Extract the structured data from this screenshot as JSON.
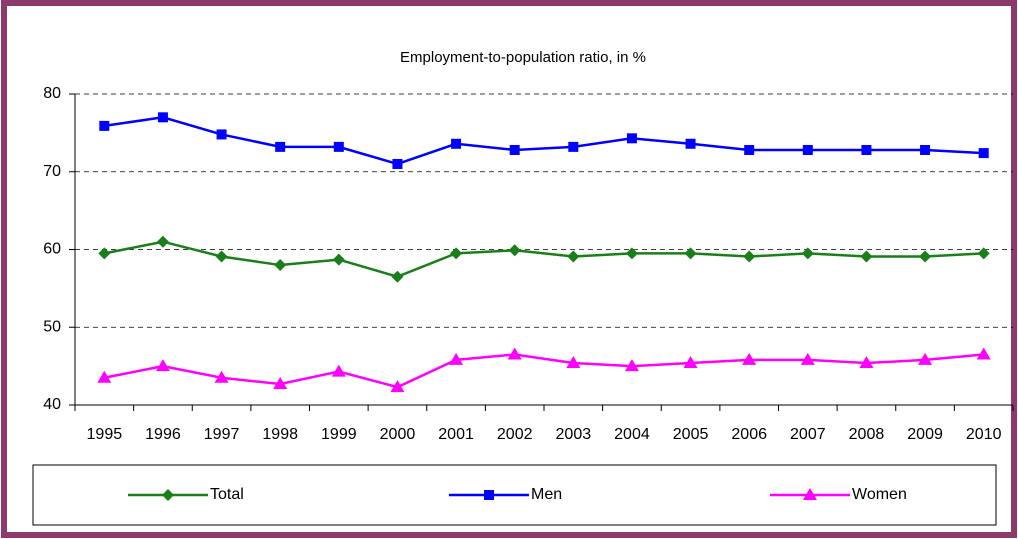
{
  "chart_data": {
    "type": "line",
    "title": "Employment-to-population ratio, in %",
    "categories": [
      "1995",
      "1996",
      "1997",
      "1998",
      "1999",
      "2000",
      "2001",
      "2002",
      "2003",
      "2004",
      "2005",
      "2006",
      "2007",
      "2008",
      "2009",
      "2010"
    ],
    "series": [
      {
        "name": "Total",
        "color": "#1a7f1a",
        "marker": "diamond",
        "values": [
          59.5,
          61.0,
          59.1,
          58.0,
          58.7,
          56.5,
          59.5,
          59.9,
          59.1,
          59.5,
          59.5,
          59.1,
          59.5,
          59.1,
          59.1,
          59.5
        ]
      },
      {
        "name": "Men",
        "color": "#0000ff",
        "marker": "square",
        "values": [
          75.9,
          77.0,
          74.8,
          73.2,
          73.2,
          71.0,
          73.6,
          72.8,
          73.2,
          74.3,
          73.6,
          72.8,
          72.8,
          72.8,
          72.8,
          72.4
        ]
      },
      {
        "name": "Women",
        "color": "#ff00ff",
        "marker": "triangle",
        "values": [
          43.5,
          45.0,
          43.5,
          42.7,
          44.3,
          42.3,
          45.8,
          46.5,
          45.4,
          45.0,
          45.4,
          45.8,
          45.8,
          45.4,
          45.8,
          46.5
        ]
      }
    ],
    "ylim": [
      40,
      80
    ],
    "yticks": [
      40,
      50,
      60,
      70,
      80
    ],
    "grid": true,
    "legend": "bottom"
  }
}
